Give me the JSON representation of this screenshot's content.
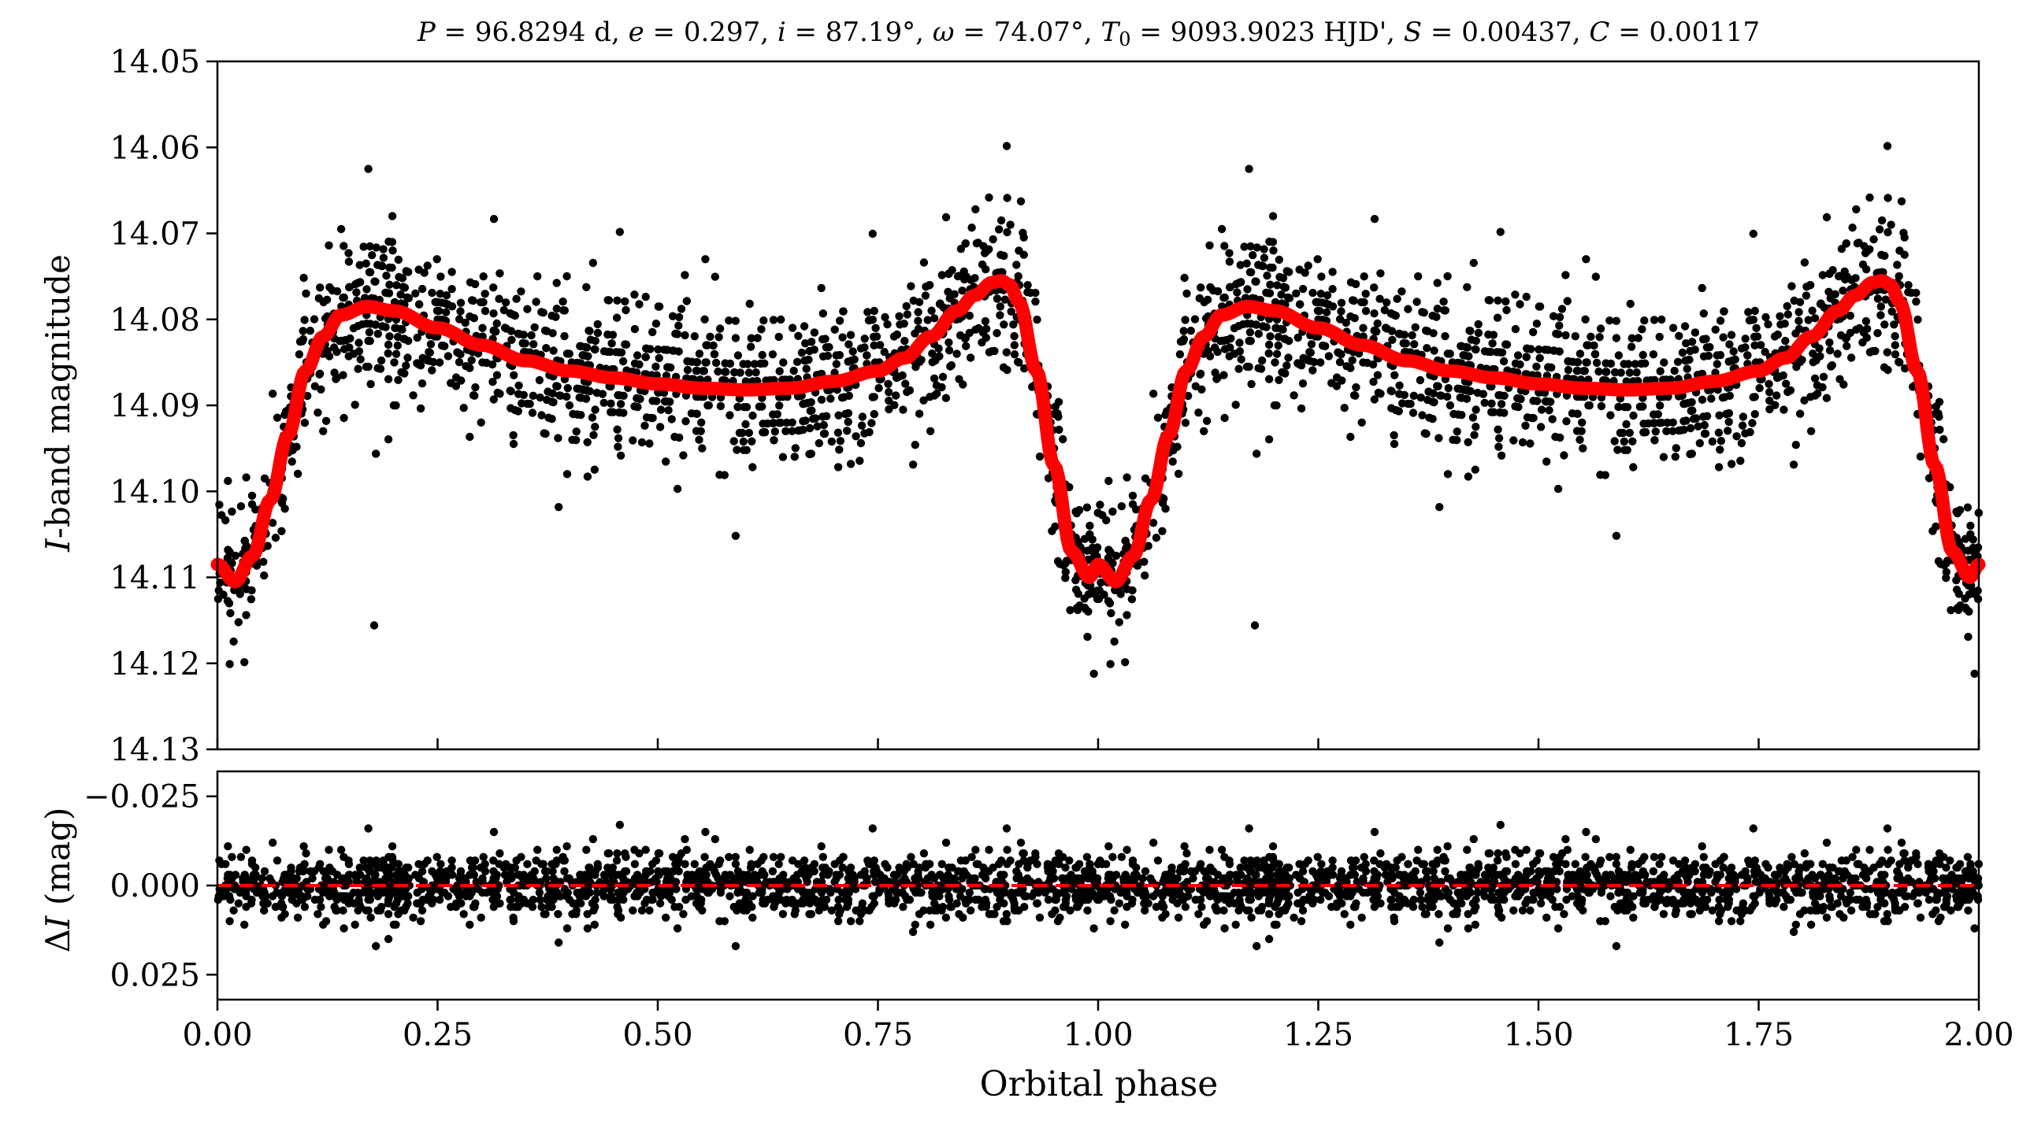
{
  "chart_data": [
    {
      "type": "scatter",
      "panel": "light-curve",
      "title": "P = 96.8294 d, e = 0.297, i = 87.19°, ω = 74.07°, T₀ = 9093.9023 HJD', S = 0.00437, C = 0.00117",
      "xlabel": "",
      "ylabel": "I-band magnitude",
      "xlim": [
        0.0,
        2.0
      ],
      "ylim": [
        14.13,
        14.05
      ],
      "y_inverted": true,
      "yticks": [
        14.05,
        14.06,
        14.07,
        14.08,
        14.09,
        14.1,
        14.11,
        14.12,
        14.13
      ],
      "ytick_labels": [
        "14.05",
        "14.06",
        "14.07",
        "14.08",
        "14.09",
        "14.10",
        "14.11",
        "14.12",
        "14.13"
      ],
      "xticks": [
        0.0,
        0.25,
        0.5,
        0.75,
        1.0,
        1.25,
        1.5,
        1.75,
        2.0
      ],
      "grid": false,
      "series": [
        {
          "name": "",
          "kind": "points",
          "color": "#000000",
          "n_points_per_cycle": 1400,
          "scatter_sigma": 0.0045
        },
        {
          "name": "",
          "kind": "model-line",
          "color": "#ff0000",
          "x": [
            0.0,
            0.02,
            0.04,
            0.06,
            0.08,
            0.1,
            0.12,
            0.14,
            0.17,
            0.2,
            0.25,
            0.3,
            0.35,
            0.4,
            0.45,
            0.5,
            0.55,
            0.6,
            0.65,
            0.7,
            0.75,
            0.78,
            0.81,
            0.84,
            0.86,
            0.88,
            0.89,
            0.9,
            0.91,
            0.93,
            0.95,
            0.97,
            0.99,
            1.0
          ],
          "y": [
            14.1085,
            14.1105,
            14.1075,
            14.101,
            14.0935,
            14.086,
            14.082,
            14.0795,
            14.0785,
            14.079,
            14.081,
            14.083,
            14.0848,
            14.086,
            14.0868,
            14.0875,
            14.088,
            14.0882,
            14.088,
            14.0872,
            14.086,
            14.0845,
            14.082,
            14.079,
            14.0772,
            14.0757,
            14.0755,
            14.076,
            14.078,
            14.086,
            14.097,
            14.107,
            14.11,
            14.1085
          ]
        }
      ]
    },
    {
      "type": "scatter",
      "panel": "residuals",
      "title": "",
      "xlabel": "Orbital phase",
      "ylabel": "ΔI (mag)",
      "xlim": [
        0.0,
        2.0
      ],
      "ylim": [
        0.032,
        -0.032
      ],
      "y_inverted": true,
      "yticks": [
        -0.025,
        0.0,
        0.025
      ],
      "ytick_labels": [
        "−0.025",
        "0.000",
        "0.025"
      ],
      "xticks": [
        0.0,
        0.25,
        0.5,
        0.75,
        1.0,
        1.25,
        1.5,
        1.75,
        2.0
      ],
      "xtick_labels": [
        "0.00",
        "0.25",
        "0.50",
        "0.75",
        "1.00",
        "1.25",
        "1.50",
        "1.75",
        "2.00"
      ],
      "grid": false,
      "series": [
        {
          "name": "",
          "kind": "points",
          "color": "#000000",
          "scatter_sigma": 0.0045
        },
        {
          "name": "",
          "kind": "zero-line",
          "style": "dashed",
          "color": "#ff0000",
          "y": 0.0
        }
      ]
    }
  ]
}
